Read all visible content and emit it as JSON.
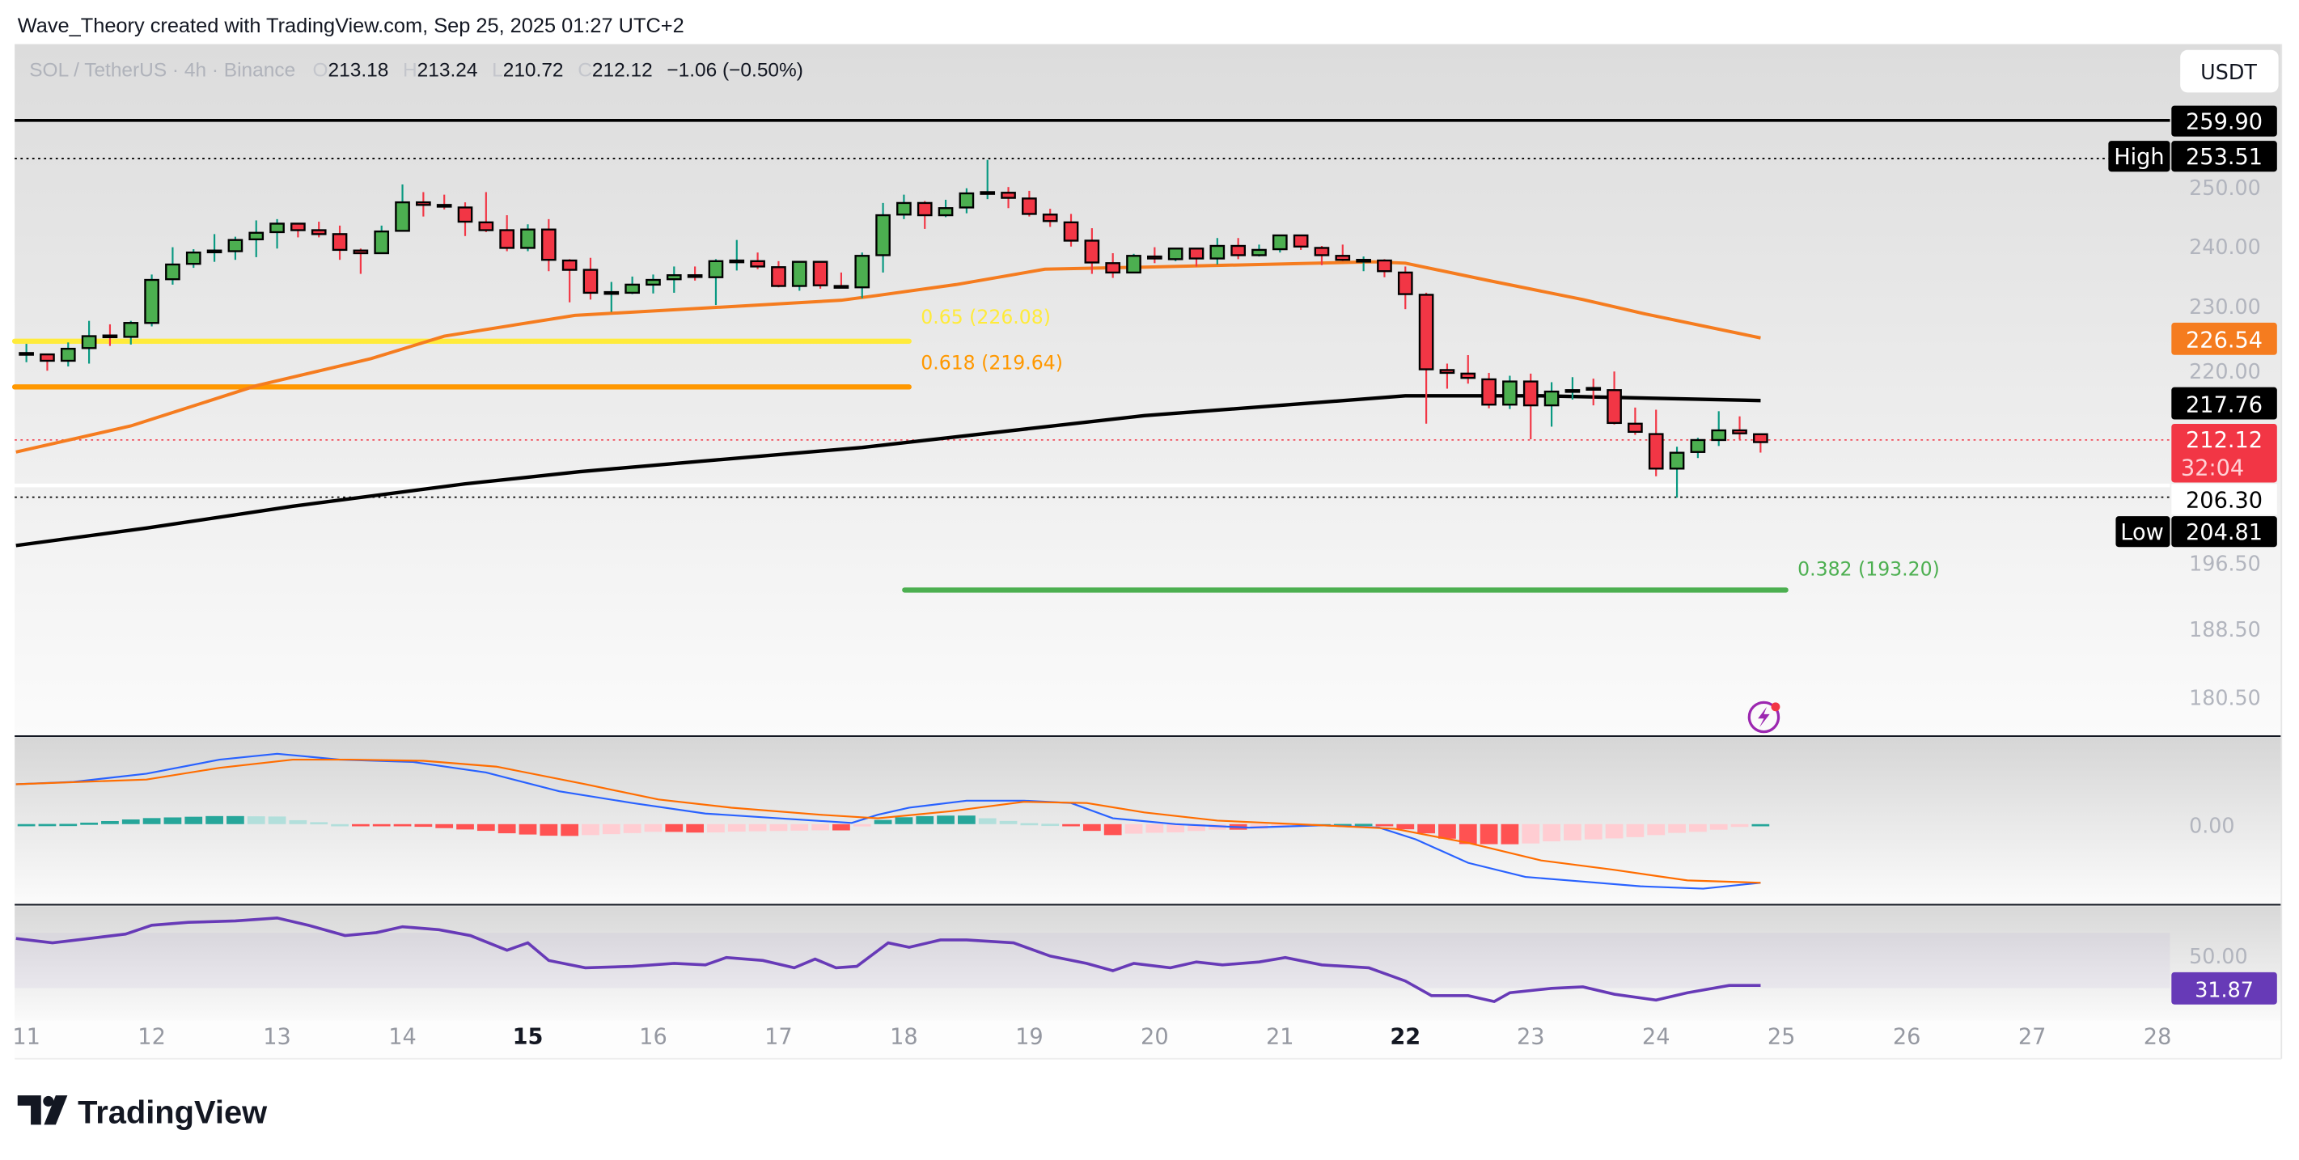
{
  "header": {
    "attribution": "Wave_Theory created with TradingView.com, Sep 25, 2025 01:27 UTC+2"
  },
  "legend": {
    "symbol": "SOL / TetherUS · 4h · Binance",
    "o_label": "O",
    "open": "213.18",
    "h_label": "H",
    "high": "213.24",
    "l_label": "L",
    "low": "210.72",
    "c_label": "C",
    "close": "212.12",
    "change": "−1.06 (−0.50%)"
  },
  "currency_button": "USDT",
  "price_axis": {
    "scale": "log",
    "ticks": [
      "250.00",
      "240.00",
      "230.00",
      "220.00",
      "196.50",
      "188.50",
      "180.50"
    ]
  },
  "price_tags": {
    "line_top": "259.90",
    "high_label": "High",
    "high_value": "253.51",
    "ema_orange": "226.54",
    "ma_black": "217.76",
    "last_price": "212.12",
    "countdown": "32:04",
    "line_white": "206.30",
    "low_label": "Low",
    "low_value": "204.81"
  },
  "fib_levels": [
    {
      "label": "0.65 (226.08)",
      "price": 226.08,
      "color": "#ffeb3b"
    },
    {
      "label": "0.618 (219.64)",
      "price": 219.64,
      "color": "#ff9800"
    },
    {
      "label": "0.382 (193.20)",
      "price": 193.2,
      "color": "#4caf50"
    }
  ],
  "colors": {
    "up": "#4caf50",
    "down": "#f23645",
    "up_wick": "#089981",
    "ema": "#f57c1f",
    "ma": "#000000",
    "macd": "#2962ff",
    "signal": "#ff6d00",
    "rsi": "#673ab7",
    "hist_up_strong": "#26a69a",
    "hist_up_weak": "#b2dfdb",
    "hist_dn_strong": "#ff5252",
    "hist_dn_weak": "#ffcdd2"
  },
  "time_axis": {
    "labels": [
      {
        "text": "11",
        "bold": false
      },
      {
        "text": "12",
        "bold": false
      },
      {
        "text": "13",
        "bold": false
      },
      {
        "text": "14",
        "bold": false
      },
      {
        "text": "15",
        "bold": true
      },
      {
        "text": "16",
        "bold": false
      },
      {
        "text": "17",
        "bold": false
      },
      {
        "text": "18",
        "bold": false
      },
      {
        "text": "19",
        "bold": false
      },
      {
        "text": "20",
        "bold": false
      },
      {
        "text": "21",
        "bold": false
      },
      {
        "text": "22",
        "bold": true
      },
      {
        "text": "23",
        "bold": false
      },
      {
        "text": "24",
        "bold": false
      },
      {
        "text": "25",
        "bold": false
      },
      {
        "text": "26",
        "bold": false
      },
      {
        "text": "27",
        "bold": false
      },
      {
        "text": "28",
        "bold": false
      }
    ]
  },
  "macd_pane": {
    "zero_label": "0.00"
  },
  "rsi_pane": {
    "mid_label": "50.00",
    "value_label": "31.87"
  },
  "footer": {
    "logo_text": "TradingView"
  },
  "chart_data": {
    "type": "candlestick",
    "timeframe": "4h",
    "candles_ohlc": [
      [
        224.3,
        225.7,
        223.1,
        224.4
      ],
      [
        224.2,
        224.3,
        221.9,
        223.3
      ],
      [
        223.3,
        225.9,
        222.5,
        225.0
      ],
      [
        225.1,
        229.0,
        222.9,
        226.8
      ],
      [
        226.9,
        228.5,
        225.4,
        226.8
      ],
      [
        226.7,
        229.0,
        225.6,
        228.7
      ],
      [
        228.7,
        235.8,
        228.2,
        235.0
      ],
      [
        235.1,
        239.9,
        234.3,
        237.3
      ],
      [
        237.4,
        239.6,
        236.8,
        239.1
      ],
      [
        239.3,
        241.9,
        237.7,
        239.4
      ],
      [
        239.3,
        241.5,
        238.0,
        241.0
      ],
      [
        241.1,
        244.0,
        238.4,
        242.1
      ],
      [
        242.2,
        244.2,
        239.7,
        243.5
      ],
      [
        243.5,
        243.5,
        241.4,
        242.5
      ],
      [
        242.5,
        243.8,
        241.4,
        241.9
      ],
      [
        241.9,
        243.2,
        238.0,
        239.5
      ],
      [
        239.4,
        239.7,
        235.9,
        239.0
      ],
      [
        239.0,
        243.2,
        239.0,
        242.3
      ],
      [
        242.4,
        249.6,
        242.4,
        246.8
      ],
      [
        246.8,
        248.4,
        244.6,
        246.4
      ],
      [
        246.4,
        248.0,
        245.7,
        246.3
      ],
      [
        246.0,
        246.8,
        241.6,
        243.8
      ],
      [
        243.7,
        248.4,
        242.2,
        242.5
      ],
      [
        242.5,
        244.8,
        239.3,
        239.8
      ],
      [
        239.8,
        243.4,
        239.3,
        242.6
      ],
      [
        242.6,
        244.2,
        236.3,
        238.0
      ],
      [
        237.9,
        238.1,
        231.7,
        236.5
      ],
      [
        236.5,
        238.3,
        232.1,
        233.1
      ],
      [
        233.1,
        234.7,
        230.3,
        233.2
      ],
      [
        233.1,
        235.5,
        232.9,
        234.3
      ],
      [
        234.3,
        235.8,
        233.0,
        235.0
      ],
      [
        235.1,
        237.0,
        233.1,
        235.7
      ],
      [
        235.7,
        237.0,
        234.9,
        235.5
      ],
      [
        235.4,
        238.1,
        231.3,
        237.8
      ],
      [
        237.8,
        241.0,
        236.4,
        237.9
      ],
      [
        237.8,
        239.1,
        236.6,
        237.0
      ],
      [
        236.9,
        237.8,
        233.9,
        234.1
      ],
      [
        234.1,
        237.7,
        233.4,
        237.7
      ],
      [
        237.7,
        237.7,
        233.7,
        234.2
      ],
      [
        234.1,
        236.1,
        233.8,
        234.0
      ],
      [
        233.9,
        239.1,
        232.3,
        238.6
      ],
      [
        238.7,
        246.7,
        236.1,
        244.8
      ],
      [
        244.9,
        248.0,
        244.2,
        246.7
      ],
      [
        246.7,
        247.0,
        242.7,
        244.8
      ],
      [
        244.8,
        247.2,
        244.5,
        245.9
      ],
      [
        246.0,
        249.0,
        245.1,
        248.2
      ],
      [
        248.3,
        253.51,
        247.3,
        248.4
      ],
      [
        248.3,
        249.2,
        245.9,
        247.5
      ],
      [
        247.4,
        248.6,
        244.6,
        245.0
      ],
      [
        244.9,
        245.8,
        243.0,
        243.9
      ],
      [
        243.7,
        245.0,
        240.0,
        240.9
      ],
      [
        240.9,
        242.8,
        235.9,
        237.6
      ],
      [
        237.5,
        239.0,
        235.3,
        236.1
      ],
      [
        236.1,
        238.9,
        236.1,
        238.6
      ],
      [
        238.5,
        239.9,
        237.5,
        238.2
      ],
      [
        238.1,
        239.7,
        237.8,
        239.7
      ],
      [
        239.7,
        239.7,
        237.0,
        238.2
      ],
      [
        238.2,
        241.3,
        237.3,
        240.1
      ],
      [
        240.1,
        241.3,
        238.1,
        238.7
      ],
      [
        238.7,
        240.3,
        238.5,
        239.5
      ],
      [
        239.6,
        241.7,
        239.1,
        241.7
      ],
      [
        241.7,
        241.7,
        239.5,
        240.0
      ],
      [
        239.8,
        240.1,
        237.2,
        238.7
      ],
      [
        238.6,
        240.3,
        237.8,
        238.0
      ],
      [
        237.9,
        238.5,
        236.3,
        238.0
      ],
      [
        237.9,
        238.1,
        235.4,
        236.3
      ],
      [
        236.1,
        237.0,
        230.7,
        232.9
      ],
      [
        232.8,
        233.1,
        214.6,
        222.1
      ],
      [
        222.0,
        222.9,
        219.4,
        221.6
      ],
      [
        221.5,
        224.1,
        220.1,
        220.9
      ],
      [
        220.7,
        221.6,
        216.7,
        217.2
      ],
      [
        217.2,
        221.2,
        216.6,
        220.4
      ],
      [
        220.4,
        221.5,
        212.5,
        217.1
      ],
      [
        217.1,
        220.3,
        214.2,
        219.0
      ],
      [
        219.0,
        221.0,
        217.9,
        219.2
      ],
      [
        219.5,
        220.8,
        217.1,
        219.4
      ],
      [
        219.2,
        221.8,
        214.5,
        214.7
      ],
      [
        214.6,
        216.8,
        213.1,
        213.5
      ],
      [
        213.2,
        216.5,
        207.6,
        208.6
      ],
      [
        208.6,
        211.5,
        204.81,
        210.7
      ],
      [
        210.8,
        212.7,
        210.0,
        212.4
      ],
      [
        212.4,
        216.3,
        211.6,
        213.7
      ],
      [
        213.7,
        215.6,
        212.5,
        213.3
      ],
      [
        213.18,
        213.24,
        210.72,
        212.12
      ]
    ],
    "ema_orange": [
      {
        "t": "09-10 22:00",
        "v": 210.8
      },
      {
        "t": "09-11 20:00",
        "v": 214.3
      },
      {
        "t": "09-12 20:00",
        "v": 219.8
      },
      {
        "t": "09-13 18:00",
        "v": 223.6
      },
      {
        "t": "09-14 08:00",
        "v": 226.8
      },
      {
        "t": "09-15 09:00",
        "v": 229.8
      },
      {
        "t": "09-16 11:00",
        "v": 230.9
      },
      {
        "t": "09-17 12:00",
        "v": 232.0
      },
      {
        "t": "09-17 19:00",
        "v": 232.7
      },
      {
        "t": "09-18 10:00",
        "v": 234.3
      },
      {
        "t": "09-19 03:00",
        "v": 236.6
      },
      {
        "t": "09-19 22:00",
        "v": 236.9
      },
      {
        "t": "09-21 18:00",
        "v": 237.7
      },
      {
        "t": "09-22 00:00",
        "v": 237.5
      },
      {
        "t": "09-22 16:00",
        "v": 234.9
      },
      {
        "t": "09-23 10:00",
        "v": 232.1
      },
      {
        "t": "09-23 22:00",
        "v": 230.0
      },
      {
        "t": "09-24 20:00",
        "v": 226.54
      }
    ],
    "ma_black": [
      {
        "t": "09-10 22:00",
        "v": 198.7
      },
      {
        "t": "09-11 23:00",
        "v": 200.9
      },
      {
        "t": "09-13 03:00",
        "v": 203.7
      },
      {
        "t": "09-14 12:00",
        "v": 206.6
      },
      {
        "t": "09-15 10:00",
        "v": 208.2
      },
      {
        "t": "09-17 16:00",
        "v": 211.4
      },
      {
        "t": "09-19 22:00",
        "v": 215.7
      },
      {
        "t": "09-22 00:00",
        "v": 218.4
      },
      {
        "t": "09-23 02:00",
        "v": 218.4
      },
      {
        "t": "09-24 20:00",
        "v": 217.76
      }
    ],
    "macd": [
      {
        "t": "09-10 22:00",
        "v": 3.4
      },
      {
        "t": "09-11 09:00",
        "v": 3.6
      },
      {
        "t": "09-11 23:00",
        "v": 4.3
      },
      {
        "t": "09-12 13:00",
        "v": 5.5
      },
      {
        "t": "09-13 00:00",
        "v": 6.0
      },
      {
        "t": "09-13 12:00",
        "v": 5.5
      },
      {
        "t": "09-14 02:00",
        "v": 5.3
      },
      {
        "t": "09-14 16:00",
        "v": 4.4
      },
      {
        "t": "09-15 06:00",
        "v": 2.8
      },
      {
        "t": "09-15 20:00",
        "v": 1.8
      },
      {
        "t": "09-16 10:00",
        "v": 0.9
      },
      {
        "t": "09-17 00:00",
        "v": 0.5
      },
      {
        "t": "09-17 14:00",
        "v": 0.1
      },
      {
        "t": "09-17 19:00",
        "v": 0.8
      },
      {
        "t": "09-18 01:00",
        "v": 1.4
      },
      {
        "t": "09-18 12:00",
        "v": 2.0
      },
      {
        "t": "09-18 23:00",
        "v": 2.0
      },
      {
        "t": "09-19 08:00",
        "v": 1.8
      },
      {
        "t": "09-19 16:00",
        "v": 0.5
      },
      {
        "t": "09-20 04:00",
        "v": 0.0
      },
      {
        "t": "09-20 18:00",
        "v": -0.3
      },
      {
        "t": "09-21 08:00",
        "v": -0.1
      },
      {
        "t": "09-21 19:00",
        "v": -0.3
      },
      {
        "t": "09-22 02:00",
        "v": -1.3
      },
      {
        "t": "09-22 12:00",
        "v": -3.3
      },
      {
        "t": "09-22 23:00",
        "v": -4.5
      },
      {
        "t": "09-23 10:00",
        "v": -4.9
      },
      {
        "t": "09-23 21:00",
        "v": -5.3
      },
      {
        "t": "09-24 09:00",
        "v": -5.5
      },
      {
        "t": "09-24 20:00",
        "v": -5.0
      }
    ],
    "signal": [
      {
        "t": "09-10 22:00",
        "v": 3.4
      },
      {
        "t": "09-11 23:00",
        "v": 3.8
      },
      {
        "t": "09-12 13:00",
        "v": 4.8
      },
      {
        "t": "09-13 03:00",
        "v": 5.5
      },
      {
        "t": "09-13 14:00",
        "v": 5.5
      },
      {
        "t": "09-14 04:00",
        "v": 5.4
      },
      {
        "t": "09-14 18:00",
        "v": 4.9
      },
      {
        "t": "09-15 11:00",
        "v": 3.4
      },
      {
        "t": "09-16 01:00",
        "v": 2.1
      },
      {
        "t": "09-16 15:00",
        "v": 1.4
      },
      {
        "t": "09-17 08:00",
        "v": 0.8
      },
      {
        "t": "09-17 19:00",
        "v": 0.5
      },
      {
        "t": "09-18 09:00",
        "v": 1.1
      },
      {
        "t": "09-18 23:00",
        "v": 1.9
      },
      {
        "t": "09-19 11:00",
        "v": 1.8
      },
      {
        "t": "09-19 22:00",
        "v": 1.0
      },
      {
        "t": "09-20 12:00",
        "v": 0.3
      },
      {
        "t": "09-21 08:00",
        "v": -0.1
      },
      {
        "t": "09-21 22:00",
        "v": -0.4
      },
      {
        "t": "09-22 12:00",
        "v": -1.6
      },
      {
        "t": "09-23 02:00",
        "v": -3.1
      },
      {
        "t": "09-23 16:00",
        "v": -3.9
      },
      {
        "t": "09-24 06:00",
        "v": -4.8
      },
      {
        "t": "09-24 20:00",
        "v": -5.0
      }
    ],
    "rsi": [
      {
        "t": "09-10 22:00",
        "v": 66.0
      },
      {
        "t": "09-11 05:00",
        "v": 62.8
      },
      {
        "t": "09-11 12:00",
        "v": 66.0
      },
      {
        "t": "09-11 19:00",
        "v": 69.1
      },
      {
        "t": "09-12 00:00",
        "v": 75.5
      },
      {
        "t": "09-12 07:00",
        "v": 77.7
      },
      {
        "t": "09-12 16:00",
        "v": 78.7
      },
      {
        "t": "09-13 00:00",
        "v": 80.9
      },
      {
        "t": "09-13 06:00",
        "v": 75.5
      },
      {
        "t": "09-13 13:00",
        "v": 68.1
      },
      {
        "t": "09-13 19:00",
        "v": 70.2
      },
      {
        "t": "09-14 00:00",
        "v": 74.5
      },
      {
        "t": "09-14 07:00",
        "v": 72.3
      },
      {
        "t": "09-14 13:00",
        "v": 68.1
      },
      {
        "t": "09-14 20:00",
        "v": 57.4
      },
      {
        "t": "09-15 00:00",
        "v": 62.8
      },
      {
        "t": "09-15 04:00",
        "v": 50.0
      },
      {
        "t": "09-15 11:00",
        "v": 44.7
      },
      {
        "t": "09-15 20:00",
        "v": 45.7
      },
      {
        "t": "09-16 04:00",
        "v": 47.9
      },
      {
        "t": "09-16 10:00",
        "v": 46.8
      },
      {
        "t": "09-16 14:00",
        "v": 52.1
      },
      {
        "t": "09-16 21:00",
        "v": 50.0
      },
      {
        "t": "09-17 03:00",
        "v": 44.7
      },
      {
        "t": "09-17 07:00",
        "v": 51.1
      },
      {
        "t": "09-17 11:00",
        "v": 44.7
      },
      {
        "t": "09-17 15:00",
        "v": 45.7
      },
      {
        "t": "09-17 21:00",
        "v": 62.8
      },
      {
        "t": "09-18 01:00",
        "v": 59.6
      },
      {
        "t": "09-18 07:00",
        "v": 64.9
      },
      {
        "t": "09-18 12:00",
        "v": 64.9
      },
      {
        "t": "09-18 21:00",
        "v": 62.8
      },
      {
        "t": "09-19 04:00",
        "v": 53.2
      },
      {
        "t": "09-19 11:00",
        "v": 47.9
      },
      {
        "t": "09-19 16:00",
        "v": 42.6
      },
      {
        "t": "09-19 20:00",
        "v": 47.9
      },
      {
        "t": "09-20 03:00",
        "v": 44.7
      },
      {
        "t": "09-20 08:00",
        "v": 48.9
      },
      {
        "t": "09-20 13:00",
        "v": 46.8
      },
      {
        "t": "09-20 20:00",
        "v": 48.9
      },
      {
        "t": "09-21 01:00",
        "v": 52.1
      },
      {
        "t": "09-21 08:00",
        "v": 46.8
      },
      {
        "t": "09-21 17:00",
        "v": 44.7
      },
      {
        "t": "09-22 00:00",
        "v": 35.1
      },
      {
        "t": "09-22 05:00",
        "v": 24.5
      },
      {
        "t": "09-22 12:00",
        "v": 24.5
      },
      {
        "t": "09-22 17:00",
        "v": 20.2
      },
      {
        "t": "09-22 20:00",
        "v": 26.6
      },
      {
        "t": "09-23 04:00",
        "v": 29.8
      },
      {
        "t": "09-23 10:00",
        "v": 30.9
      },
      {
        "t": "09-23 16:00",
        "v": 25.5
      },
      {
        "t": "09-24 00:00",
        "v": 21.3
      },
      {
        "t": "09-24 06:00",
        "v": 26.6
      },
      {
        "t": "09-24 14:00",
        "v": 31.9
      },
      {
        "t": "09-24 20:00",
        "v": 31.87
      }
    ],
    "rsi_band": [
      30,
      70
    ]
  }
}
